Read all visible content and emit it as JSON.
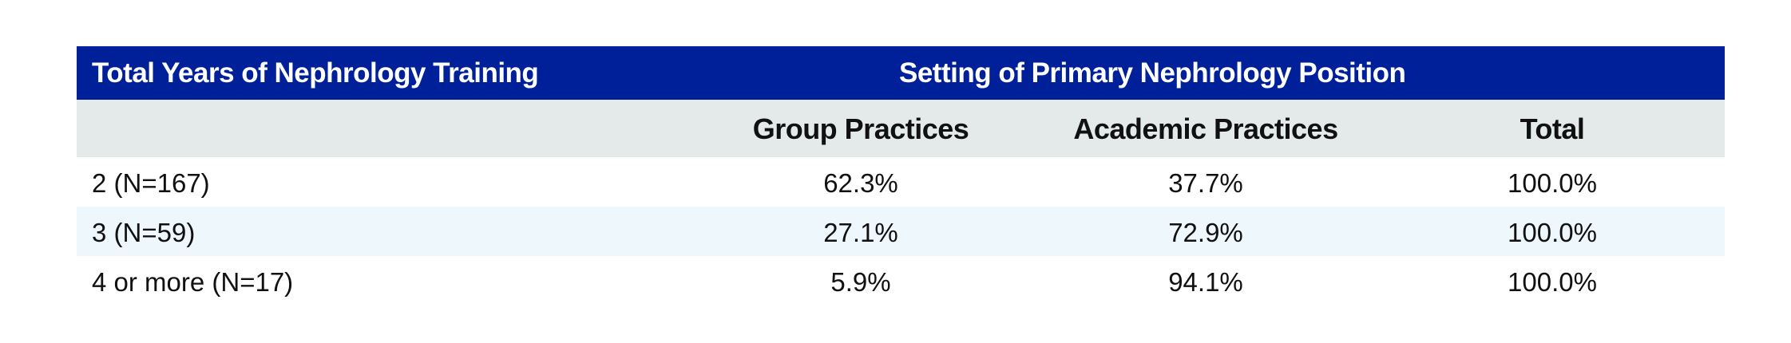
{
  "header": {
    "row_label_header": "Total Years of Nephrology Training",
    "group_header": "Setting of Primary Nephrology Position",
    "background": "#00209a"
  },
  "columns": [
    "Group Practices",
    "Academic Practices",
    "Total"
  ],
  "rows": [
    {
      "label": "2 (N=167)",
      "values": [
        "62.3%",
        "37.7%",
        "100.0%"
      ]
    },
    {
      "label": "3 (N=59)",
      "values": [
        "27.1%",
        "72.9%",
        "100.0%"
      ]
    },
    {
      "label": "4 or more (N=17)",
      "values": [
        "5.9%",
        "94.1%",
        "100.0%"
      ]
    }
  ]
}
